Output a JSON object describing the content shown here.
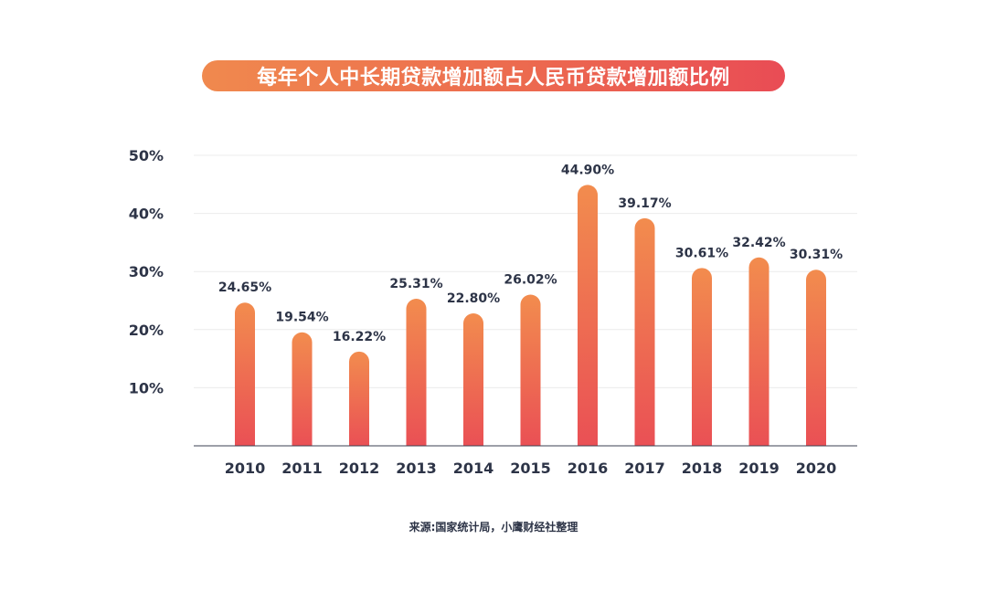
{
  "chart_data": {
    "type": "bar",
    "title": "每年个人中长期贷款增加额占人民币贷款增加额比例",
    "categories": [
      "2010",
      "2011",
      "2012",
      "2013",
      "2014",
      "2015",
      "2016",
      "2017",
      "2018",
      "2019",
      "2020"
    ],
    "values": [
      24.65,
      19.54,
      16.22,
      25.31,
      22.8,
      26.02,
      44.9,
      39.17,
      30.61,
      32.42,
      30.31
    ],
    "value_labels": [
      "24.65%",
      "19.54%",
      "16.22%",
      "25.31%",
      "22.80%",
      "26.02%",
      "44.90%",
      "39.17%",
      "30.61%",
      "32.42%",
      "30.31%"
    ],
    "yticks": [
      "10%",
      "20%",
      "30%",
      "40%",
      "50%"
    ],
    "ylim": [
      0,
      50
    ],
    "grid": true,
    "bar_gradient": [
      "#f28c4e",
      "#ea5055"
    ],
    "source": "来源:国家统计局，小鹰财经社整理"
  }
}
